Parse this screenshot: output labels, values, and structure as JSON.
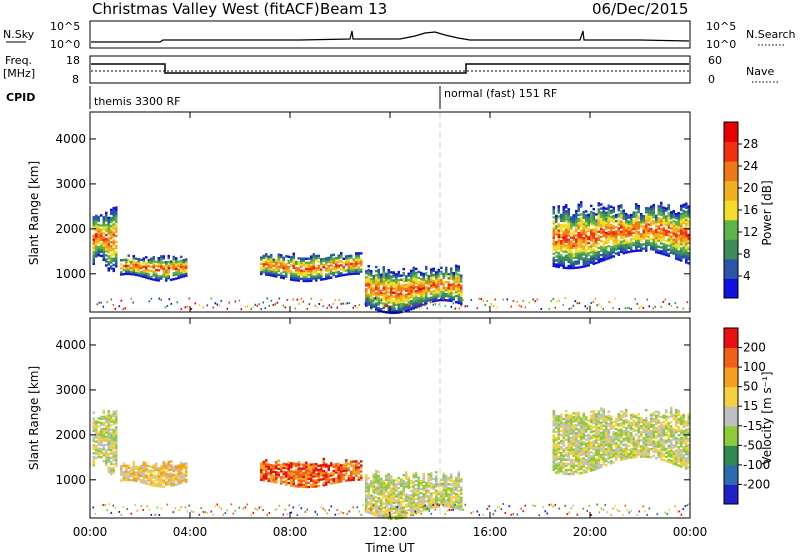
{
  "header": {
    "title": "Christmas Valley West (fitACF)",
    "beam": "Beam 13",
    "date": "06/Dec/2015"
  },
  "strip_labels": {
    "nsky": "N.Sky",
    "nsky_ticks": [
      "10^5",
      "10^0"
    ],
    "nsearch": "N.Search",
    "nsearch_ticks": [
      "10^5",
      "10^0"
    ],
    "freq": "Freq.",
    "freq_unit": "[MHz]",
    "freq_ticks": [
      "18",
      "8"
    ],
    "nave": "Nave",
    "nave_ticks": [
      "60",
      "0"
    ],
    "cpid": "CPID",
    "cpid_segments": [
      "themis 3300 RF",
      "normal (fast) 151 RF"
    ]
  },
  "chart_data": [
    {
      "type": "heatmap",
      "panel": "power",
      "ylabel": "Slant Range [km]",
      "yticks": [
        "1000",
        "2000",
        "3000",
        "4000"
      ],
      "ylim": [
        150,
        4600
      ],
      "xlim": [
        "00:00",
        "24:00"
      ],
      "colorbar_label": "Power [dB]",
      "colorbar_ticks": [
        "4",
        "8",
        "12",
        "16",
        "20",
        "24",
        "28"
      ],
      "colors": [
        "#1010e0",
        "#2a55a8",
        "#3d8a5a",
        "#5fb34a",
        "#f5dc2a",
        "#f0b020",
        "#f07818",
        "#f03010",
        "#e80000"
      ],
      "echo_regions": [
        {
          "t_start_h": 0.1,
          "t_end_h": 1.0,
          "range_min_km": 1200,
          "range_max_km": 2500
        },
        {
          "t_start_h": 1.2,
          "t_end_h": 3.9,
          "range_min_km": 900,
          "range_max_km": 1400
        },
        {
          "t_start_h": 6.8,
          "t_end_h": 10.8,
          "range_min_km": 900,
          "range_max_km": 1450
        },
        {
          "t_start_h": 11.0,
          "t_end_h": 14.8,
          "range_min_km": 250,
          "range_max_km": 1200
        },
        {
          "t_start_h": 18.5,
          "t_end_h": 24.0,
          "range_min_km": 1300,
          "range_max_km": 2600
        }
      ]
    },
    {
      "type": "heatmap",
      "panel": "velocity",
      "ylabel": "Slant Range [km]",
      "yticks": [
        "1000",
        "2000",
        "3000",
        "4000"
      ],
      "ylim": [
        150,
        4600
      ],
      "xlim": [
        "00:00",
        "24:00"
      ],
      "xlabel": "Time UT",
      "xticks": [
        "00:00",
        "04:00",
        "08:00",
        "12:00",
        "16:00",
        "20:00",
        "00:00"
      ],
      "colorbar_label": "Velocity [m s⁻¹]",
      "colorbar_ticks": [
        "200",
        "100",
        "50",
        "15",
        "-15",
        "-50",
        "-100",
        "-200"
      ],
      "colors": [
        "#2020c8",
        "#2f6ab0",
        "#2e8a52",
        "#8ccc38",
        "#c0c0c0",
        "#f5d040",
        "#f5a020",
        "#f06018",
        "#e81010"
      ],
      "echo_regions": [
        {
          "t_start_h": 0.1,
          "t_end_h": 1.0,
          "range_min_km": 1300,
          "range_max_km": 2600
        },
        {
          "t_start_h": 1.2,
          "t_end_h": 3.9,
          "range_min_km": 900,
          "range_max_km": 1400
        },
        {
          "t_start_h": 6.8,
          "t_end_h": 10.8,
          "range_min_km": 900,
          "range_max_km": 1450
        },
        {
          "t_start_h": 11.0,
          "t_end_h": 14.8,
          "range_min_km": 250,
          "range_max_km": 1200
        },
        {
          "t_start_h": 18.5,
          "t_end_h": 24.0,
          "range_min_km": 1300,
          "range_max_km": 2600
        }
      ]
    }
  ]
}
